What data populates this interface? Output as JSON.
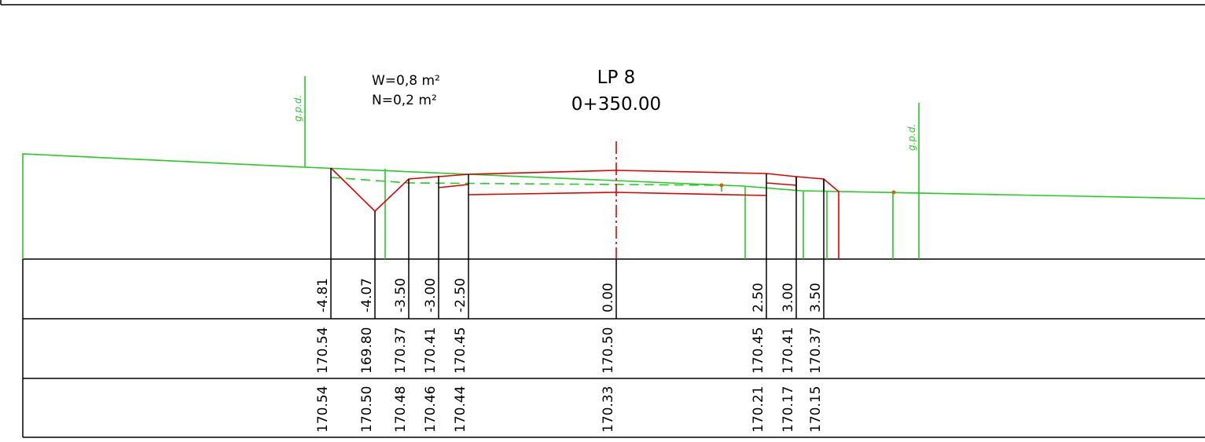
{
  "section": {
    "name": "LP 8",
    "chainage": "0+350.00"
  },
  "areas": {
    "w": "W=0,8  m²",
    "n": "N=0,2  m²"
  },
  "gpd_label": "g.p.d.",
  "colors": {
    "terrain": "#22cc22",
    "design": "#e00000",
    "frame": "#000000"
  },
  "stations": [
    {
      "offset": "-4.81",
      "design_elev": "170.54",
      "ground_elev": "170.54"
    },
    {
      "offset": "-4.07",
      "design_elev": "169.80",
      "ground_elev": "170.50"
    },
    {
      "offset": "-3.50",
      "design_elev": "170.37",
      "ground_elev": "170.48"
    },
    {
      "offset": "-3.00",
      "design_elev": "170.41",
      "ground_elev": "170.46"
    },
    {
      "offset": "-2.50",
      "design_elev": "170.45",
      "ground_elev": "170.44"
    },
    {
      "offset": "0.00",
      "design_elev": "170.50",
      "ground_elev": "170.33"
    },
    {
      "offset": "2.50",
      "design_elev": "170.45",
      "ground_elev": "170.21"
    },
    {
      "offset": "3.00",
      "design_elev": "170.41",
      "ground_elev": "170.17"
    },
    {
      "offset": "3.50",
      "design_elev": "170.37",
      "ground_elev": "170.15"
    }
  ]
}
